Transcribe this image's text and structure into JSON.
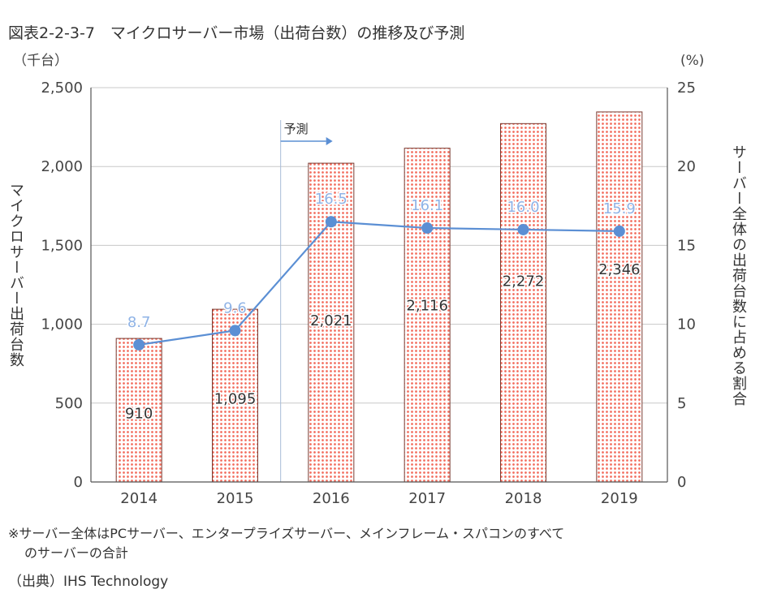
{
  "title": "図表2-2-3-7　マイクロサーバー市場（出荷台数）の推移及び予測",
  "note_line1": "※サーバー全体はPCサーバー、エンタープライズサーバー、メインフレーム・スパコンのすべて",
  "note_line2": "のサーバーの合計",
  "source": "（出典）IHS Technology",
  "chart_data": {
    "type": "bar+line",
    "categories": [
      "2014",
      "2015",
      "2016",
      "2017",
      "2018",
      "2019"
    ],
    "forecast_label": "予測",
    "forecast_start_index": 2,
    "left_axis": {
      "unit": "（千台）",
      "label": "マイクロサーバー出荷台数",
      "ylim": [
        0,
        2500
      ],
      "ticks": [
        "0",
        "500",
        "1,000",
        "1,500",
        "2,000",
        "2,500"
      ],
      "tick_values": [
        0,
        500,
        1000,
        1500,
        2000,
        2500
      ]
    },
    "right_axis": {
      "unit": "(%)",
      "label": "サーバー全体の出荷台数に占める割合",
      "ylim": [
        0,
        25
      ],
      "ticks": [
        "0",
        "5",
        "10",
        "15",
        "20",
        "25"
      ],
      "tick_values": [
        0,
        5,
        10,
        15,
        20,
        25
      ]
    },
    "bars": {
      "values": [
        910,
        1095,
        2021,
        2116,
        2272,
        2346
      ],
      "labels": [
        "910",
        "1,095",
        "2,021",
        "2,116",
        "2,272",
        "2,346"
      ],
      "fill": "#f26b5b",
      "stroke": "#7a3a30"
    },
    "line": {
      "values": [
        8.7,
        9.6,
        16.5,
        16.1,
        16.0,
        15.9
      ],
      "labels": [
        "8.7",
        "9.6",
        "16.5",
        "16.1",
        "16.0",
        "15.9"
      ],
      "color": "#5b8fd4",
      "label_color": "#8fb3e6"
    },
    "grid": true,
    "grid_color": "#c8c8c8"
  }
}
